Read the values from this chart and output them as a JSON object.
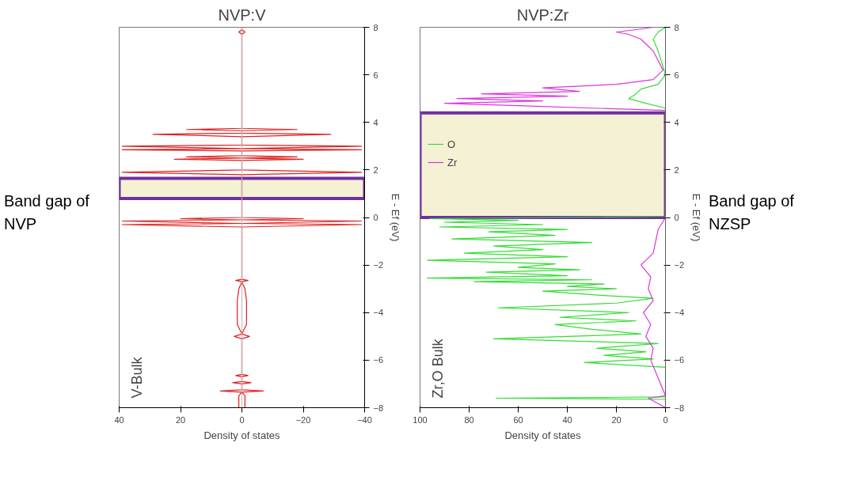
{
  "chart_data": [
    {
      "type": "line",
      "title": "NVP:V",
      "xlabel": "Density of states",
      "ylabel": "E - Ef (eV)",
      "annotations": [
        "V-Bulk"
      ],
      "orientation": "horizontal",
      "xlim": [
        40,
        -40
      ],
      "xticks": [
        40,
        20,
        0,
        -20,
        -40
      ],
      "ylim": [
        -8,
        8
      ],
      "yticks": [
        -8,
        -6,
        -4,
        -2,
        0,
        2,
        4,
        6,
        8
      ],
      "bands": [
        {
          "axis": "y",
          "from": 0.8,
          "to": 1.65,
          "label": "Band gap of NVP",
          "color": "#f2eecb"
        }
      ],
      "series": [
        {
          "color": "#e02020",
          "x": [
            -8,
            -7.5,
            -7.35,
            -7.3,
            -7.25,
            -7.0,
            -6.95,
            -6.9,
            -6.7,
            -6.65,
            -6.6,
            -6.0,
            -5.1,
            -5.0,
            -4.9,
            -4.5,
            -4.0,
            -3.5,
            -3.0,
            -2.7,
            -2.65,
            -2.6,
            -2.2,
            -0.4,
            -0.3,
            -0.25,
            -0.15,
            -0.1,
            -0.05,
            0,
            0.1,
            1.8,
            1.9,
            2.0,
            2.4,
            2.45,
            2.5,
            2.55,
            2.6,
            2.8,
            2.85,
            2.9,
            3.0,
            3.05,
            3.4,
            3.5,
            3.55,
            3.65,
            3.7,
            3.75,
            4,
            7.7,
            7.8,
            7.9,
            8
          ],
          "values": [
            1,
            1,
            0,
            7,
            0,
            0,
            3,
            0,
            0,
            2,
            0,
            0,
            0,
            2.5,
            0,
            1.5,
            1.5,
            1.5,
            1,
            0,
            2,
            0,
            0,
            0,
            39,
            0,
            39,
            0,
            20,
            0,
            0,
            0,
            39,
            0,
            0,
            22,
            0,
            18,
            0,
            0,
            39,
            0,
            39,
            0,
            0,
            29,
            0,
            0,
            18,
            0,
            0,
            0,
            1,
            0,
            0
          ]
        },
        {
          "color": "#e02020",
          "x": [
            -8,
            -7.5,
            -7.35,
            -7.3,
            -7.25,
            -7.0,
            -6.95,
            -6.9,
            -6.7,
            -6.65,
            -6.6,
            -6.0,
            -5.1,
            -5.0,
            -4.9,
            -4.5,
            -4.0,
            -3.5,
            -3.0,
            -2.7,
            -2.65,
            -2.6,
            -2.2,
            -0.4,
            -0.3,
            -0.25,
            -0.15,
            -0.1,
            -0.05,
            0,
            0.1,
            1.8,
            1.9,
            2.0,
            2.4,
            2.45,
            2.5,
            2.55,
            2.6,
            2.8,
            2.85,
            2.9,
            3.0,
            3.05,
            3.4,
            3.5,
            3.55,
            3.65,
            3.7,
            3.75,
            4,
            7.7,
            7.8,
            7.9,
            8
          ],
          "values": [
            -1,
            -1,
            0,
            -7,
            0,
            0,
            -3,
            0,
            0,
            -2,
            0,
            0,
            0,
            -2.5,
            0,
            -1.5,
            -1.5,
            -1.5,
            -1,
            0,
            -2,
            0,
            0,
            0,
            -39,
            0,
            -39,
            0,
            -20,
            0,
            0,
            0,
            -39,
            0,
            0,
            -20,
            0,
            -18,
            0,
            0,
            -39,
            0,
            -39,
            0,
            0,
            -29,
            0,
            0,
            -18,
            0,
            0,
            0,
            -1,
            0,
            0
          ]
        }
      ]
    },
    {
      "type": "line",
      "title": "NVP:Zr",
      "xlabel": "Density of states",
      "ylabel": "E - Ef (eV)",
      "annotations": [
        "Zr,O Bulk"
      ],
      "orientation": "horizontal",
      "legend": "left",
      "xlim": [
        100,
        0
      ],
      "xticks": [
        100,
        80,
        60,
        40,
        20,
        0
      ],
      "ylim": [
        -8,
        8
      ],
      "yticks": [
        -8,
        -6,
        -4,
        -2,
        0,
        2,
        4,
        6,
        8
      ],
      "bands": [
        {
          "axis": "y",
          "from": 0.0,
          "to": 4.4,
          "label": "Band gap of NZSP",
          "color": "#f2eecb"
        }
      ],
      "series": [
        {
          "name": "O",
          "color": "#33dd33",
          "x": [
            -8,
            -7.65,
            -7.6,
            -7.55,
            -6.3,
            -6.1,
            -5.95,
            -5.8,
            -5.65,
            -5.5,
            -5.3,
            -5.1,
            -4.9,
            -4.7,
            -4.5,
            -4.35,
            -4.2,
            -4.0,
            -3.8,
            -3.6,
            -3.4,
            -3.25,
            -3.1,
            -3.0,
            -2.9,
            -2.8,
            -2.7,
            -2.62,
            -2.55,
            -2.45,
            -2.3,
            -2.2,
            -2.1,
            -1.95,
            -1.8,
            -1.65,
            -1.5,
            -1.35,
            -1.2,
            -1.05,
            -0.9,
            -0.75,
            -0.6,
            -0.5,
            -0.4,
            -0.3,
            -0.2,
            -0.12,
            -0.05,
            0.05,
            4.6,
            4.8,
            5.0,
            5.2,
            5.4,
            5.6,
            6.0,
            7.0,
            7.5,
            7.8,
            8
          ],
          "values": [
            0,
            0,
            69,
            0,
            0,
            33,
            5,
            25,
            8,
            28,
            3,
            70,
            10,
            30,
            45,
            12,
            43,
            15,
            68,
            20,
            5,
            30,
            50,
            20,
            40,
            25,
            78,
            30,
            97,
            40,
            73,
            35,
            60,
            45,
            97,
            40,
            82,
            50,
            70,
            30,
            87,
            45,
            72,
            40,
            92,
            50,
            90,
            60,
            96,
            0,
            0,
            8,
            15,
            12,
            10,
            3,
            0,
            3,
            5,
            3,
            0
          ]
        },
        {
          "name": "Zr",
          "color": "#dd33dd",
          "x": [
            -8,
            -7.6,
            -7.5,
            -6.5,
            -6.0,
            -5.5,
            -5.0,
            -4.5,
            -4.0,
            -3.5,
            -3.0,
            -2.5,
            -2.0,
            -1.5,
            -1.0,
            -0.5,
            0,
            4.5,
            4.7,
            4.8,
            4.9,
            5.0,
            5.1,
            5.2,
            5.3,
            5.45,
            5.6,
            5.8,
            6.2,
            7.0,
            7.3,
            7.5,
            7.7,
            7.8,
            7.9,
            8
          ],
          "values": [
            0,
            7,
            0,
            4,
            6,
            5,
            8,
            6,
            9,
            5,
            7,
            6,
            10,
            5,
            4,
            3,
            0,
            0,
            60,
            90,
            50,
            85,
            40,
            75,
            35,
            50,
            20,
            5,
            1,
            5,
            8,
            10,
            15,
            20,
            12,
            5
          ]
        }
      ]
    }
  ]
}
